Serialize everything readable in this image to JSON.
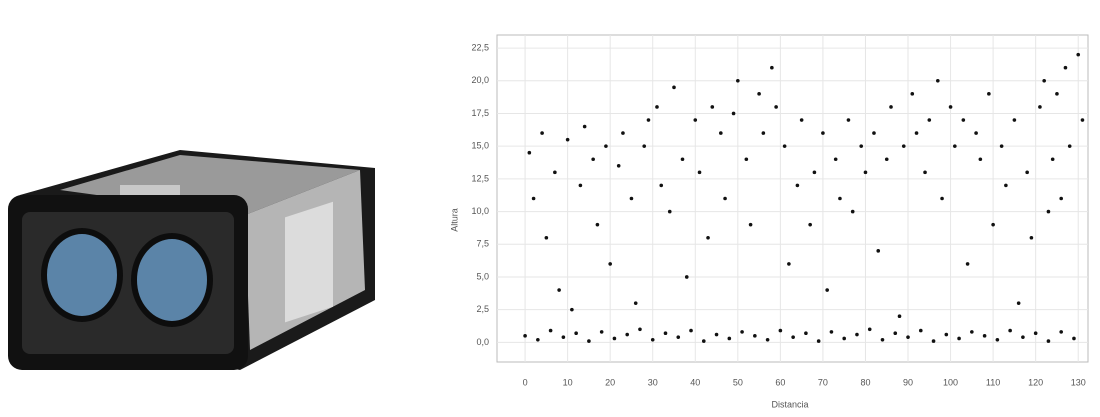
{
  "chart_data": {
    "type": "scatter",
    "x_label": "Distancia",
    "y_label": "Altura",
    "x": [
      0,
      3,
      6,
      9,
      12,
      15,
      18,
      21,
      24,
      27,
      30,
      33,
      36,
      39,
      42,
      45,
      48,
      51,
      54,
      57,
      60,
      63,
      66,
      69,
      72,
      75,
      78,
      81,
      84,
      87,
      90,
      93,
      96,
      99,
      102,
      105,
      108,
      111,
      114,
      117,
      120,
      123,
      126,
      129,
      1,
      2,
      4,
      5,
      7,
      8,
      10,
      11,
      13,
      14,
      16,
      17,
      19,
      20,
      22,
      23,
      25,
      26,
      28,
      29,
      31,
      32,
      34,
      35,
      37,
      38,
      40,
      41,
      43,
      44,
      46,
      47,
      49,
      50,
      52,
      53,
      55,
      56,
      58,
      59,
      61,
      62,
      64,
      65,
      67,
      68,
      70,
      71,
      73,
      74,
      76,
      77,
      79,
      80,
      82,
      83,
      85,
      86,
      88,
      89,
      91,
      92,
      94,
      95,
      97,
      98,
      100,
      101,
      103,
      104,
      106,
      107,
      109,
      110,
      112,
      113,
      115,
      116,
      118,
      119,
      121,
      122,
      124,
      125,
      127,
      128,
      130,
      131,
      126,
      123
    ],
    "values": [
      0.5,
      0.2,
      0.9,
      0.4,
      0.7,
      0.1,
      0.8,
      0.3,
      0.6,
      1.0,
      0.2,
      0.7,
      0.4,
      0.9,
      0.1,
      0.6,
      0.3,
      0.8,
      0.5,
      0.2,
      0.9,
      0.4,
      0.7,
      0.1,
      0.8,
      0.3,
      0.6,
      1.0,
      0.2,
      0.7,
      0.4,
      0.9,
      0.1,
      0.6,
      0.3,
      0.8,
      0.5,
      0.2,
      0.9,
      0.4,
      0.7,
      0.1,
      0.8,
      0.3,
      14.5,
      11,
      16,
      8,
      13,
      4,
      15.5,
      2.5,
      12,
      16.5,
      14,
      9,
      15,
      6,
      13.5,
      16,
      11,
      3,
      15,
      17,
      18,
      12,
      10,
      19.5,
      14,
      5,
      17,
      13,
      8,
      18,
      16,
      11,
      17.5,
      20,
      14,
      9,
      19,
      16,
      21,
      18,
      15,
      6,
      12,
      17,
      9,
      13,
      16,
      4,
      14,
      11,
      17,
      10,
      15,
      13,
      16,
      7,
      14,
      18,
      2,
      15,
      19,
      16,
      13,
      17,
      20,
      11,
      18,
      15,
      17,
      6,
      16,
      14,
      19,
      9,
      15,
      12,
      17,
      3,
      13,
      8,
      18,
      20,
      14,
      19,
      21,
      15,
      22,
      17,
      11,
      10
    ],
    "color": "#111111",
    "xlim": [
      -6.6,
      132.3
    ],
    "xticks": [
      0,
      10,
      20,
      30,
      40,
      50,
      60,
      70,
      80,
      90,
      100,
      110,
      120,
      130
    ],
    "ylim": [
      -1.5,
      23.5
    ],
    "yticks": [
      {
        "value": 0,
        "label": "0,0"
      },
      {
        "value": 2.5,
        "label": "2,5"
      },
      {
        "value": 5,
        "label": "5,0"
      },
      {
        "value": 7.5,
        "label": "7,5"
      },
      {
        "value": 10,
        "label": "10,0"
      },
      {
        "value": 12.5,
        "label": "12,5"
      },
      {
        "value": 15,
        "label": "15,0"
      },
      {
        "value": 17.5,
        "label": "17,5"
      },
      {
        "value": 20,
        "label": "20,0"
      },
      {
        "value": 22.5,
        "label": "22,5"
      }
    ],
    "grid": true
  }
}
